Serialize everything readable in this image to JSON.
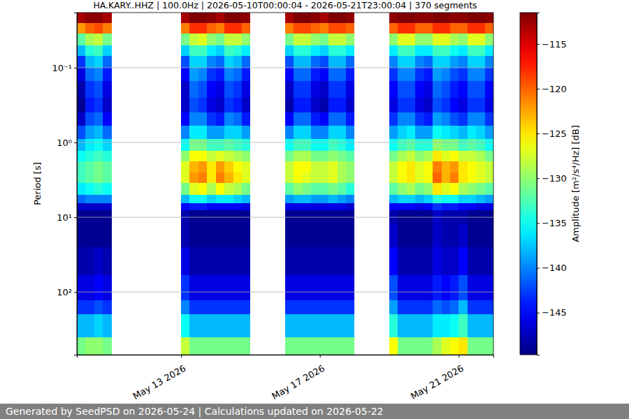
{
  "chart_data": {
    "type": "heatmap",
    "title": "HA.KARY..HHZ | 100.0Hz | 2026-05-10T00:00:04 - 2026-05-21T23:00:04 | 370 segments",
    "y_label": "Period [s]",
    "footer": "Generated by SeedPSD on 2026-05-24 | Calculations updated on 2026-05-22",
    "log": "y",
    "grid": true,
    "xlim": [
      "2026-05-10T00:00",
      "2026-05-22T00:00"
    ],
    "xticks": [
      {
        "value": "2026-05-13T00:00",
        "label": "May 13 2026"
      },
      {
        "value": "2026-05-17T00:00",
        "label": "May 17 2026"
      },
      {
        "value": "2026-05-21T00:00",
        "label": "May 21 2026"
      }
    ],
    "ylim": [
      0.0183,
      690
    ],
    "yticks": [
      {
        "value": 0.1,
        "label": "10⁻¹"
      },
      {
        "value": 1,
        "label": "10⁰"
      },
      {
        "value": 10,
        "label": "10¹"
      },
      {
        "value": 100,
        "label": "10²"
      }
    ],
    "x": [
      "2026-05-10T00:00",
      "2026-05-10T06:00",
      "2026-05-10T12:00",
      "2026-05-10T18:00",
      "2026-05-13T00:00",
      "2026-05-13T06:00",
      "2026-05-13T12:00",
      "2026-05-13T18:00",
      "2026-05-14T00:00",
      "2026-05-14T06:00",
      "2026-05-14T12:00",
      "2026-05-14T18:00",
      "2026-05-16T00:00",
      "2026-05-16T06:00",
      "2026-05-16T12:00",
      "2026-05-16T18:00",
      "2026-05-17T00:00",
      "2026-05-17T06:00",
      "2026-05-17T12:00",
      "2026-05-17T18:00",
      "2026-05-19T00:00",
      "2026-05-19T06:00",
      "2026-05-19T12:00",
      "2026-05-19T18:00",
      "2026-05-20T00:00",
      "2026-05-20T06:00",
      "2026-05-20T12:00",
      "2026-05-20T18:00",
      "2026-05-21T00:00",
      "2026-05-21T06:00",
      "2026-05-21T12:00",
      "2026-05-21T18:00"
    ],
    "x_end": [
      "2026-05-10T06:00",
      "2026-05-10T12:00",
      "2026-05-10T18:00",
      "2026-05-11T00:00",
      "2026-05-13T06:00",
      "2026-05-13T12:00",
      "2026-05-13T18:00",
      "2026-05-14T00:00",
      "2026-05-14T06:00",
      "2026-05-14T12:00",
      "2026-05-14T18:00",
      "2026-05-15T00:00",
      "2026-05-16T06:00",
      "2026-05-16T12:00",
      "2026-05-16T18:00",
      "2026-05-17T00:00",
      "2026-05-17T06:00",
      "2026-05-17T12:00",
      "2026-05-17T18:00",
      "2026-05-18T00:00",
      "2026-05-19T06:00",
      "2026-05-19T12:00",
      "2026-05-19T18:00",
      "2026-05-20T00:00",
      "2026-05-20T06:00",
      "2026-05-20T12:00",
      "2026-05-20T18:00",
      "2026-05-21T00:00",
      "2026-05-21T06:00",
      "2026-05-21T12:00",
      "2026-05-21T18:00",
      "2026-05-22T00:00"
    ],
    "y_bins": [
      0.0183,
      0.025,
      0.035,
      0.05,
      0.07,
      0.1,
      0.15,
      0.25,
      0.4,
      0.6,
      0.9,
      1.3,
      1.8,
      2.5,
      3.5,
      5,
      6.5,
      8,
      12,
      25,
      60,
      130,
      200,
      400,
      690
    ],
    "z": [
      [
        -113,
        -122,
        -132,
        -138,
        -143,
        -146,
        -148,
        -149,
        -147,
        -142,
        -138,
        -135,
        -133,
        -133,
        -136,
        -141,
        -147,
        -149,
        -149,
        -148,
        -146,
        -143,
        -138,
        -131
      ],
      [
        -112,
        -120,
        -129,
        -134,
        -138,
        -141,
        -143,
        -144,
        -142,
        -139,
        -136,
        -134,
        -132,
        -132,
        -135,
        -140,
        -147,
        -149,
        -149,
        -148,
        -146,
        -143,
        -138,
        -130
      ],
      [
        -112,
        -119,
        -128,
        -133,
        -137,
        -140,
        -142,
        -143,
        -141,
        -138,
        -135,
        -133,
        -131,
        -131,
        -134,
        -140,
        -147,
        -149,
        -149,
        -147,
        -145,
        -142,
        -137,
        -130
      ],
      [
        -113,
        -121,
        -131,
        -137,
        -141,
        -144,
        -146,
        -147,
        -145,
        -141,
        -137,
        -134,
        -132,
        -132,
        -135,
        -140,
        -147,
        -149,
        -149,
        -148,
        -146,
        -143,
        -138,
        -131
      ],
      [
        -113,
        -121,
        -131,
        -137,
        -142,
        -145,
        -147,
        -147,
        -145,
        -140,
        -135,
        -130,
        -127,
        -127,
        -131,
        -138,
        -145,
        -148,
        -148,
        -146,
        -143,
        -140,
        -135,
        -128
      ],
      [
        -111,
        -118,
        -128,
        -133,
        -137,
        -139,
        -141,
        -142,
        -140,
        -136,
        -131,
        -126,
        -123,
        -122,
        -127,
        -135,
        -144,
        -149,
        -149,
        -148,
        -146,
        -143,
        -138,
        -131
      ],
      [
        -111,
        -118,
        -127,
        -133,
        -137,
        -140,
        -142,
        -143,
        -140,
        -136,
        -131,
        -126,
        -122,
        -121,
        -126,
        -135,
        -144,
        -149,
        -149,
        -148,
        -146,
        -143,
        -138,
        -131
      ],
      [
        -112,
        -120,
        -130,
        -136,
        -140,
        -143,
        -145,
        -146,
        -143,
        -139,
        -133,
        -128,
        -125,
        -125,
        -129,
        -137,
        -145,
        -149,
        -149,
        -148,
        -146,
        -143,
        -138,
        -131
      ],
      [
        -113,
        -121,
        -131,
        -137,
        -141,
        -144,
        -146,
        -147,
        -144,
        -139,
        -133,
        -127,
        -122,
        -121,
        -126,
        -136,
        -145,
        -149,
        -149,
        -148,
        -146,
        -143,
        -138,
        -131
      ],
      [
        -111,
        -118,
        -128,
        -133,
        -137,
        -140,
        -142,
        -143,
        -140,
        -137,
        -132,
        -128,
        -124,
        -123,
        -128,
        -136,
        -145,
        -149,
        -149,
        -148,
        -146,
        -143,
        -138,
        -131
      ],
      [
        -111,
        -118,
        -128,
        -134,
        -138,
        -141,
        -143,
        -144,
        -141,
        -137,
        -133,
        -129,
        -126,
        -125,
        -129,
        -137,
        -145,
        -149,
        -149,
        -148,
        -146,
        -143,
        -138,
        -131
      ],
      [
        -112,
        -120,
        -130,
        -136,
        -141,
        -144,
        -146,
        -147,
        -144,
        -139,
        -134,
        -130,
        -127,
        -127,
        -131,
        -138,
        -146,
        -149,
        -149,
        -148,
        -146,
        -143,
        -138,
        -131
      ],
      [
        -113,
        -121,
        -131,
        -137,
        -142,
        -145,
        -147,
        -148,
        -145,
        -140,
        -135,
        -131,
        -128,
        -128,
        -132,
        -139,
        -146,
        -149,
        -149,
        -148,
        -146,
        -143,
        -138,
        -131
      ],
      [
        -111,
        -119,
        -128,
        -134,
        -138,
        -141,
        -143,
        -144,
        -141,
        -137,
        -133,
        -129,
        -126,
        -126,
        -130,
        -138,
        -146,
        -149,
        -149,
        -148,
        -146,
        -143,
        -138,
        -131
      ],
      [
        -111,
        -119,
        -128,
        -134,
        -138,
        -141,
        -143,
        -144,
        -141,
        -137,
        -133,
        -129,
        -126,
        -127,
        -131,
        -138,
        -146,
        -149,
        -149,
        -148,
        -146,
        -143,
        -138,
        -131
      ],
      [
        -112,
        -120,
        -130,
        -136,
        -141,
        -144,
        -146,
        -147,
        -144,
        -140,
        -135,
        -131,
        -128,
        -128,
        -132,
        -139,
        -146,
        -149,
        -149,
        -148,
        -146,
        -143,
        -138,
        -131
      ],
      [
        -113,
        -121,
        -131,
        -137,
        -142,
        -145,
        -147,
        -148,
        -145,
        -140,
        -135,
        -131,
        -128,
        -128,
        -132,
        -139,
        -146,
        -149,
        -149,
        -148,
        -146,
        -143,
        -138,
        -131
      ],
      [
        -111,
        -119,
        -128,
        -134,
        -138,
        -141,
        -143,
        -144,
        -141,
        -137,
        -133,
        -130,
        -127,
        -127,
        -131,
        -138,
        -146,
        -149,
        -149,
        -148,
        -146,
        -143,
        -138,
        -131
      ],
      [
        -111,
        -119,
        -128,
        -134,
        -138,
        -141,
        -143,
        -144,
        -141,
        -137,
        -134,
        -131,
        -129,
        -129,
        -132,
        -139,
        -146,
        -149,
        -149,
        -148,
        -146,
        -143,
        -138,
        -131
      ],
      [
        -112,
        -120,
        -130,
        -136,
        -141,
        -144,
        -146,
        -147,
        -144,
        -140,
        -136,
        -132,
        -130,
        -130,
        -134,
        -140,
        -147,
        -149,
        -149,
        -148,
        -146,
        -143,
        -138,
        -131
      ],
      [
        -112,
        -120,
        -130,
        -136,
        -140,
        -143,
        -145,
        -146,
        -143,
        -139,
        -135,
        -131,
        -128,
        -128,
        -132,
        -138,
        -145,
        -148,
        -147,
        -145,
        -142,
        -139,
        -134,
        -126
      ],
      [
        -111,
        -118,
        -127,
        -133,
        -137,
        -140,
        -142,
        -143,
        -140,
        -137,
        -133,
        -129,
        -126,
        -126,
        -130,
        -137,
        -145,
        -149,
        -149,
        -148,
        -146,
        -143,
        -138,
        -131
      ],
      [
        -111,
        -118,
        -127,
        -133,
        -137,
        -140,
        -142,
        -143,
        -140,
        -136,
        -132,
        -128,
        -125,
        -125,
        -129,
        -137,
        -145,
        -149,
        -149,
        -148,
        -146,
        -143,
        -138,
        -131
      ],
      [
        -112,
        -120,
        -130,
        -136,
        -140,
        -143,
        -145,
        -146,
        -143,
        -139,
        -134,
        -130,
        -127,
        -127,
        -131,
        -138,
        -146,
        -149,
        -149,
        -148,
        -146,
        -143,
        -138,
        -131
      ],
      [
        -112,
        -120,
        -130,
        -136,
        -141,
        -144,
        -146,
        -147,
        -144,
        -139,
        -134,
        -129,
        -126,
        -126,
        -130,
        -137,
        -145,
        -149,
        -149,
        -148,
        -146,
        -143,
        -138,
        -131
      ],
      [
        -111,
        -118,
        -127,
        -133,
        -137,
        -139,
        -141,
        -142,
        -139,
        -135,
        -130,
        -125,
        -121,
        -120,
        -125,
        -134,
        -143,
        -147,
        -147,
        -146,
        -144,
        -141,
        -136,
        -129
      ],
      [
        -111,
        -118,
        -127,
        -133,
        -137,
        -140,
        -142,
        -143,
        -140,
        -136,
        -131,
        -127,
        -123,
        -123,
        -127,
        -135,
        -144,
        -148,
        -148,
        -147,
        -145,
        -142,
        -136,
        -127
      ],
      [
        -112,
        -120,
        -129,
        -135,
        -139,
        -142,
        -144,
        -145,
        -142,
        -137,
        -131,
        -126,
        -122,
        -121,
        -126,
        -135,
        -144,
        -148,
        -148,
        -147,
        -144,
        -141,
        -135,
        -126
      ],
      [
        -112,
        -120,
        -130,
        -136,
        -140,
        -143,
        -145,
        -146,
        -143,
        -138,
        -133,
        -128,
        -125,
        -125,
        -129,
        -137,
        -145,
        -148,
        -147,
        -145,
        -142,
        -138,
        -133,
        -125
      ],
      [
        -111,
        -118,
        -127,
        -133,
        -137,
        -140,
        -142,
        -143,
        -140,
        -136,
        -132,
        -128,
        -126,
        -126,
        -130,
        -137,
        -145,
        -149,
        -149,
        -148,
        -146,
        -143,
        -138,
        -131
      ],
      [
        -111,
        -118,
        -127,
        -133,
        -137,
        -140,
        -142,
        -143,
        -140,
        -137,
        -133,
        -129,
        -127,
        -127,
        -131,
        -138,
        -146,
        -149,
        -149,
        -148,
        -146,
        -143,
        -138,
        -131
      ],
      [
        -112,
        -120,
        -130,
        -136,
        -140,
        -143,
        -145,
        -146,
        -143,
        -139,
        -135,
        -131,
        -128,
        -128,
        -132,
        -139,
        -146,
        -149,
        -149,
        -148,
        -146,
        -143,
        -138,
        -131
      ]
    ],
    "colorbar": {
      "label": "Amplitude [m²/s⁴/Hz] [dB]",
      "range": [
        -149.7,
        -111.5
      ],
      "ticks": [
        {
          "value": -145,
          "label": "−145"
        },
        {
          "value": -140,
          "label": "−140"
        },
        {
          "value": -135,
          "label": "−135"
        },
        {
          "value": -130,
          "label": "−130"
        },
        {
          "value": -125,
          "label": "−125"
        },
        {
          "value": -120,
          "label": "−120"
        },
        {
          "value": -115,
          "label": "−115"
        }
      ]
    }
  }
}
